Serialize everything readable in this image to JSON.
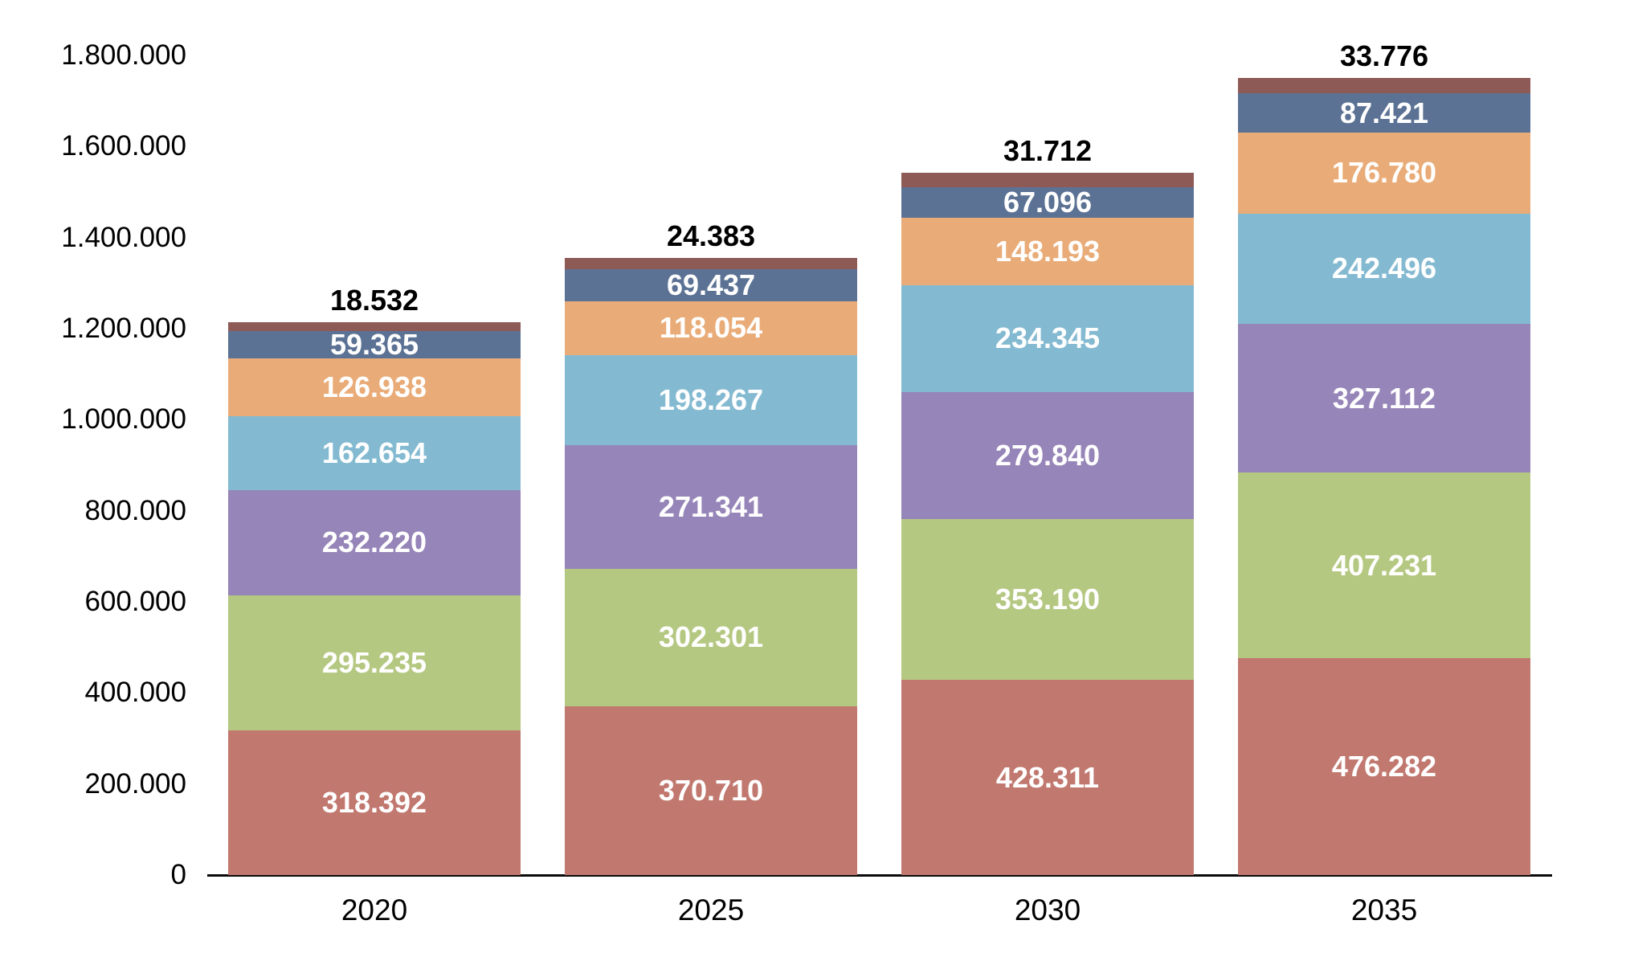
{
  "chart_data": {
    "type": "bar",
    "stacked": true,
    "grid": false,
    "legend": false,
    "background": "#FFFFFF",
    "axis_line_color": "#0A0A0A",
    "categories": [
      "2020",
      "2025",
      "2030",
      "2035"
    ],
    "y_axis": {
      "min": 0,
      "max": 1800000,
      "tick_step": 200000,
      "tick_labels": [
        "0",
        "200.000",
        "400.000",
        "600.000",
        "800.000",
        "1.000.000",
        "1.200.000",
        "1.400.000",
        "1.600.000",
        "1.800.000"
      ]
    },
    "series": [
      {
        "color": "#C1786F",
        "label_color": "#FFFFFF",
        "label_position": "inside",
        "values": [
          318392,
          370710,
          428311,
          476282
        ],
        "labels": [
          "318.392",
          "370.710",
          "428.311",
          "476.282"
        ]
      },
      {
        "color": "#B5C882",
        "label_color": "#FFFFFF",
        "label_position": "inside",
        "values": [
          295235,
          302301,
          353190,
          407231
        ],
        "labels": [
          "295.235",
          "302.301",
          "353.190",
          "407.231"
        ]
      },
      {
        "color": "#9685B8",
        "label_color": "#FFFFFF",
        "label_position": "inside",
        "values": [
          232220,
          271341,
          279840,
          327112
        ],
        "labels": [
          "232.220",
          "271.341",
          "279.840",
          "327.112"
        ]
      },
      {
        "color": "#84BAD1",
        "label_color": "#FFFFFF",
        "label_position": "inside",
        "values": [
          162654,
          198267,
          234345,
          242496
        ],
        "labels": [
          "162.654",
          "198.267",
          "234.345",
          "242.496"
        ]
      },
      {
        "color": "#E9AC78",
        "label_color": "#FFFFFF",
        "label_position": "inside",
        "values": [
          126938,
          118054,
          148193,
          176780
        ],
        "labels": [
          "126.938",
          "118.054",
          "148.193",
          "176.780"
        ]
      },
      {
        "color": "#5C7294",
        "label_color": "#FFFFFF",
        "label_position": "inside",
        "values": [
          59365,
          69437,
          67096,
          87421
        ],
        "labels": [
          "59.365",
          "69.437",
          "67.096",
          "87.421"
        ]
      },
      {
        "color": "#8E5A56",
        "label_color": "#000000",
        "label_position": "above",
        "values": [
          18532,
          24383,
          31712,
          33776
        ],
        "labels": [
          "18.532",
          "24.383",
          "31.712",
          "33.776"
        ]
      }
    ]
  }
}
